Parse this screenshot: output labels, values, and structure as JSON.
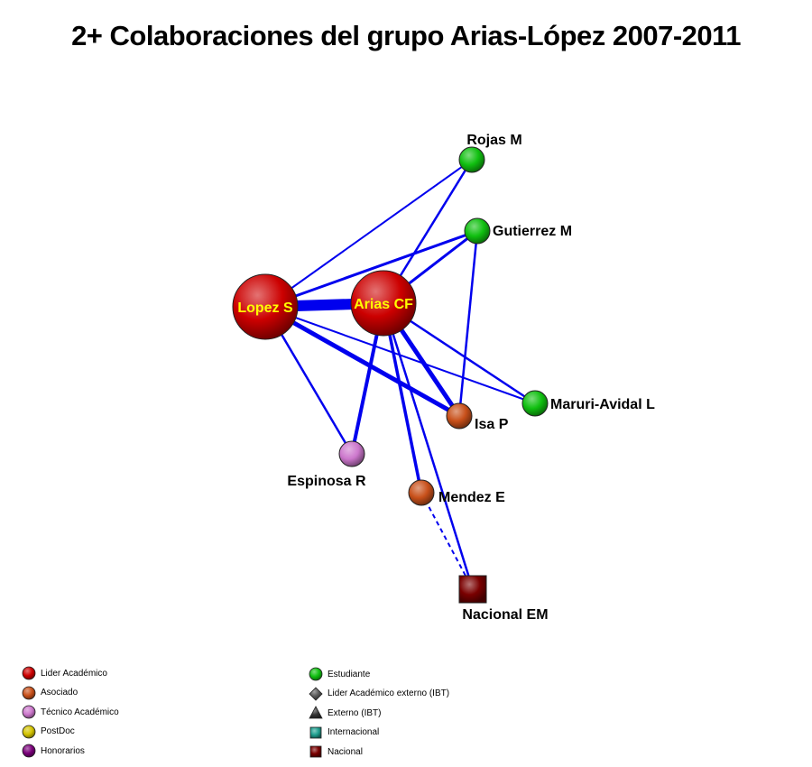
{
  "title": "2+ Colaboraciones del grupo Arias-López 2007-2011",
  "colors": {
    "edge": "#0000ee",
    "lider": "#cc0000",
    "asociado": "#c8501a",
    "tecnico": "#cc77cc",
    "postdoc": "#d4c400",
    "honorarios": "#7a007a",
    "estudiante": "#10c010",
    "lider_externo": "#555555",
    "externo": "#333333",
    "internacional": "#20a090",
    "nacional": "#7a0000",
    "inner_label": "#ffff00"
  },
  "nodes": [
    {
      "id": "lopez",
      "label": "Lopez S",
      "type": "lider"
    },
    {
      "id": "arias",
      "label": "Arias CF",
      "type": "lider"
    },
    {
      "id": "rojas",
      "label": "Rojas M",
      "type": "estudiante"
    },
    {
      "id": "gutierrez",
      "label": "Gutierrez M",
      "type": "estudiante"
    },
    {
      "id": "maruri",
      "label": "Maruri-Avidal L",
      "type": "estudiante"
    },
    {
      "id": "isa",
      "label": "Isa P",
      "type": "asociado"
    },
    {
      "id": "espinosa",
      "label": "Espinosa R",
      "type": "tecnico"
    },
    {
      "id": "mendez",
      "label": "Mendez E",
      "type": "asociado"
    },
    {
      "id": "nacional",
      "label": "Nacional EM",
      "type": "nacional"
    }
  ],
  "edges": [
    {
      "source": "lopez",
      "target": "arias",
      "weight": 12
    },
    {
      "source": "lopez",
      "target": "rojas",
      "weight": 2
    },
    {
      "source": "lopez",
      "target": "gutierrez",
      "weight": 3
    },
    {
      "source": "lopez",
      "target": "maruri",
      "weight": 2
    },
    {
      "source": "lopez",
      "target": "isa",
      "weight": 5
    },
    {
      "source": "lopez",
      "target": "espinosa",
      "weight": 2.5
    },
    {
      "source": "arias",
      "target": "rojas",
      "weight": 2.5
    },
    {
      "source": "arias",
      "target": "gutierrez",
      "weight": 3
    },
    {
      "source": "arias",
      "target": "maruri",
      "weight": 2.5
    },
    {
      "source": "arias",
      "target": "isa",
      "weight": 5
    },
    {
      "source": "arias",
      "target": "espinosa",
      "weight": 4
    },
    {
      "source": "arias",
      "target": "mendez",
      "weight": 3.5
    },
    {
      "source": "arias",
      "target": "nacional",
      "weight": 2.5
    },
    {
      "source": "gutierrez",
      "target": "isa",
      "weight": 2.5
    },
    {
      "source": "mendez",
      "target": "nacional",
      "weight": 2,
      "dashed": true
    }
  ],
  "legend": [
    {
      "label": "Lider Académico",
      "shape": "circle",
      "type": "lider"
    },
    {
      "label": "Asociado",
      "shape": "circle",
      "type": "asociado"
    },
    {
      "label": "Técnico Académico",
      "shape": "circle",
      "type": "tecnico"
    },
    {
      "label": "PostDoc",
      "shape": "circle",
      "type": "postdoc"
    },
    {
      "label": "Honorarios",
      "shape": "circle",
      "type": "honorarios"
    },
    {
      "label": "Estudiante",
      "shape": "circle",
      "type": "estudiante"
    },
    {
      "label": "Lider Académico externo (IBT)",
      "shape": "diamond",
      "type": "lider_externo"
    },
    {
      "label": "Externo (IBT)",
      "shape": "triangle",
      "type": "externo"
    },
    {
      "label": "Internacional",
      "shape": "square",
      "type": "internacional"
    },
    {
      "label": "Nacional",
      "shape": "square",
      "type": "nacional"
    }
  ]
}
